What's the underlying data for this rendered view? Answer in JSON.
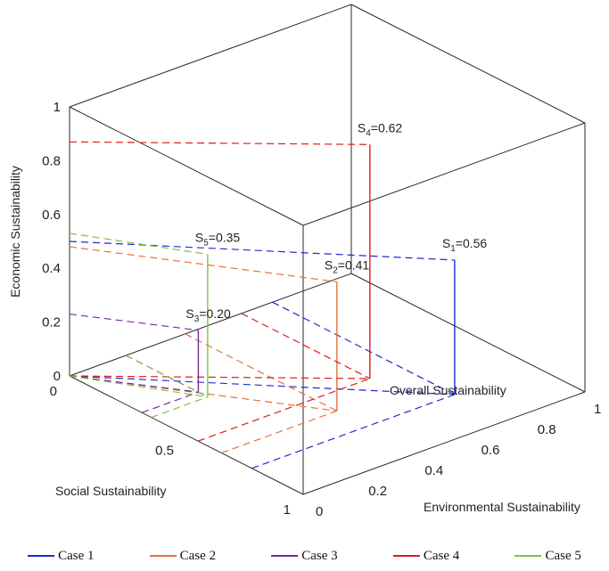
{
  "chart_data": {
    "type": "3d-line",
    "xlabel": "Environmental Sustainability",
    "ylabel": "Social Sustainability",
    "zlabel": "Economic Sustainability",
    "plane_label": "Overall Sustainability",
    "x_ticks": [
      "0",
      "0.2",
      "0.4",
      "0.6",
      "0.8",
      "1"
    ],
    "y_ticks": [
      "0",
      "0.5",
      "1"
    ],
    "z_ticks": [
      "0",
      "0.2",
      "0.4",
      "0.6",
      "0.8",
      "1"
    ],
    "xlim": [
      0,
      1
    ],
    "ylim": [
      0,
      1
    ],
    "zlim": [
      0,
      1
    ],
    "grid": false,
    "legend_position": "bottom",
    "series": [
      {
        "name": "Case 1",
        "color": "#1f2bd6",
        "env": 0.72,
        "soc": 0.78,
        "eco": 0.5,
        "score_label": "S",
        "score_index": "1",
        "score_value": "=0.56"
      },
      {
        "name": "Case 2",
        "color": "#e4733a",
        "env": 0.41,
        "soc": 0.65,
        "eco": 0.48,
        "score_label": "S",
        "score_index": "2",
        "score_value": "=0.41"
      },
      {
        "name": "Case 3",
        "color": "#7a2a9c",
        "env": 0.2,
        "soc": 0.31,
        "eco": 0.23,
        "score_label": "S",
        "score_index": "3",
        "score_value": "=0.20"
      },
      {
        "name": "Case 4",
        "color": "#e01b1b",
        "env": 0.61,
        "soc": 0.55,
        "eco": 0.87,
        "score_label": "S",
        "score_index": "4",
        "score_value": "=0.62"
      },
      {
        "name": "Case 5",
        "color": "#7cc242",
        "env": 0.2,
        "soc": 0.35,
        "eco": 0.53,
        "score_label": "S",
        "score_index": "5",
        "score_value": "=0.35"
      }
    ]
  }
}
